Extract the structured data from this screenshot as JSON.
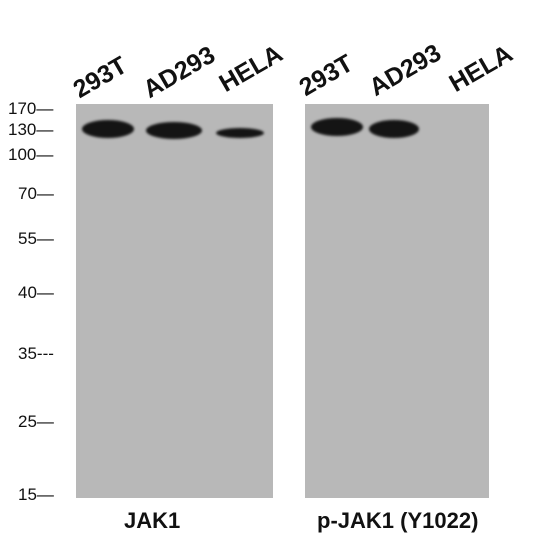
{
  "panels": [
    {
      "title": "JAK1",
      "lanes": [
        "293T",
        "AD293",
        "HELA"
      ],
      "bands": [
        {
          "lane": "293T",
          "intensity": 1.0
        },
        {
          "lane": "AD293",
          "intensity": 0.95
        },
        {
          "lane": "HELA",
          "intensity": 0.7
        }
      ]
    },
    {
      "title": "p-JAK1 (Y1022)",
      "lanes": [
        "293T",
        "AD293",
        "HELA"
      ],
      "bands": [
        {
          "lane": "293T",
          "intensity": 1.0
        },
        {
          "lane": "AD293",
          "intensity": 0.95
        },
        {
          "lane": "HELA",
          "intensity": 0.0
        }
      ]
    }
  ],
  "markers": [
    "170",
    "130",
    "100",
    "70",
    "55",
    "40",
    "35",
    "25",
    "15"
  ],
  "marker_suffixes": [
    "—",
    "—",
    "—",
    "—",
    "—",
    "—",
    "---",
    "—",
    "—"
  ],
  "colors": {
    "membrane": "#b8b8b8",
    "band": "#141414",
    "text": "#111111"
  }
}
